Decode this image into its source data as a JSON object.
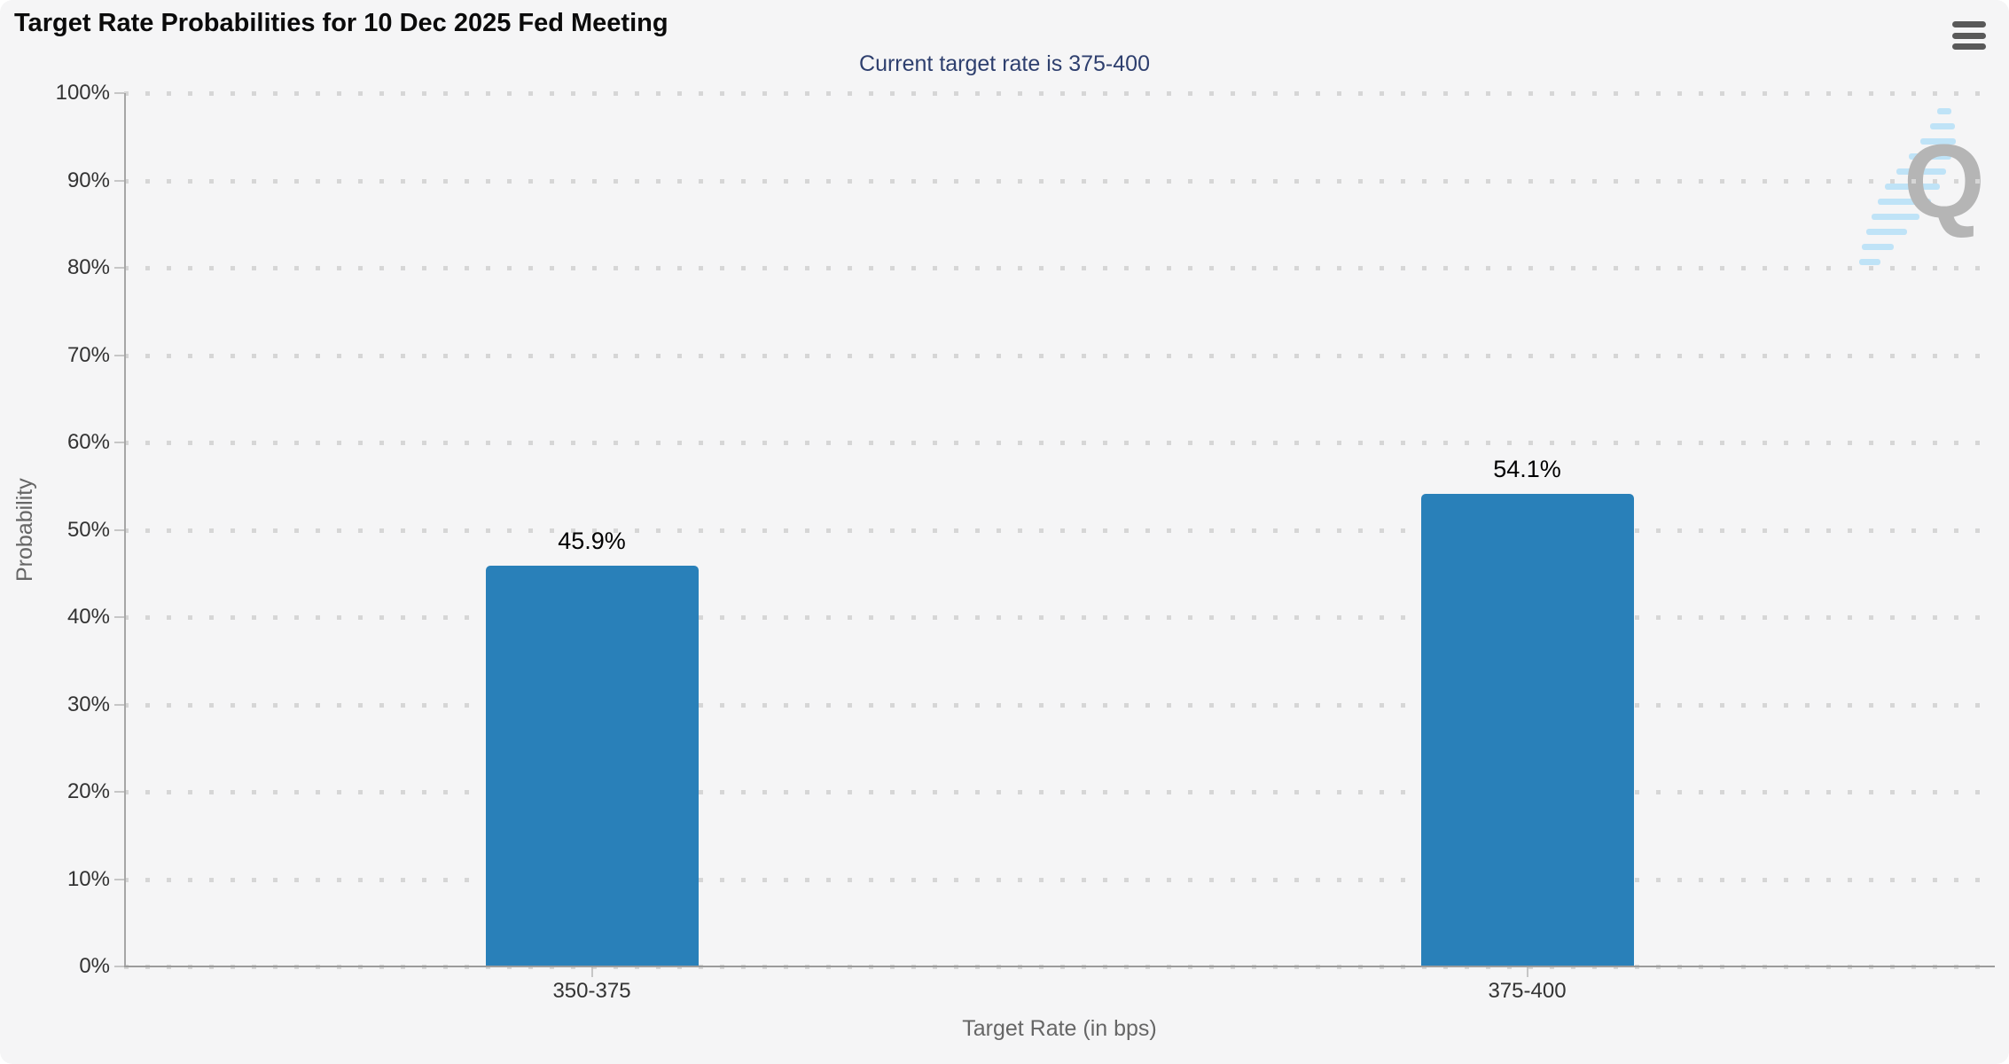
{
  "header": {
    "title": "Target Rate Probabilities for 10 Dec 2025 Fed Meeting",
    "menu_icon": "hamburger-menu"
  },
  "subtitle": "Current target rate is 375-400",
  "watermark": {
    "letter": "Q"
  },
  "colors": {
    "background": "#f5f5f6",
    "bar": "#2980b9",
    "title": "#0b0b0b",
    "subtitle": "#2e3f6e",
    "axis_label": "#333333",
    "axis_title": "#666666",
    "gridline": "#d6d6d6",
    "axis_line": "#9c9c9c",
    "data_label": "#000000",
    "menu_icon": "#595959",
    "watermark_q": "#b5b5b5",
    "watermark_dash": "#bfe3f7"
  },
  "chart_data": {
    "type": "bar",
    "title": "Target Rate Probabilities for 10 Dec 2025 Fed Meeting",
    "subtitle": "Current target rate is 375-400",
    "categories": [
      "350-375",
      "375-400"
    ],
    "values": [
      45.9,
      54.1
    ],
    "data_labels": [
      "45.9%",
      "54.1%"
    ],
    "xlabel": "Target Rate (in bps)",
    "ylabel": "Probability",
    "ylim": [
      0,
      100
    ],
    "ytick_step": 10,
    "yticks": [
      "0%",
      "10%",
      "20%",
      "30%",
      "40%",
      "50%",
      "60%",
      "70%",
      "80%",
      "90%",
      "100%"
    ],
    "grid": true,
    "legend": false,
    "bar_color": "#2980b9"
  }
}
